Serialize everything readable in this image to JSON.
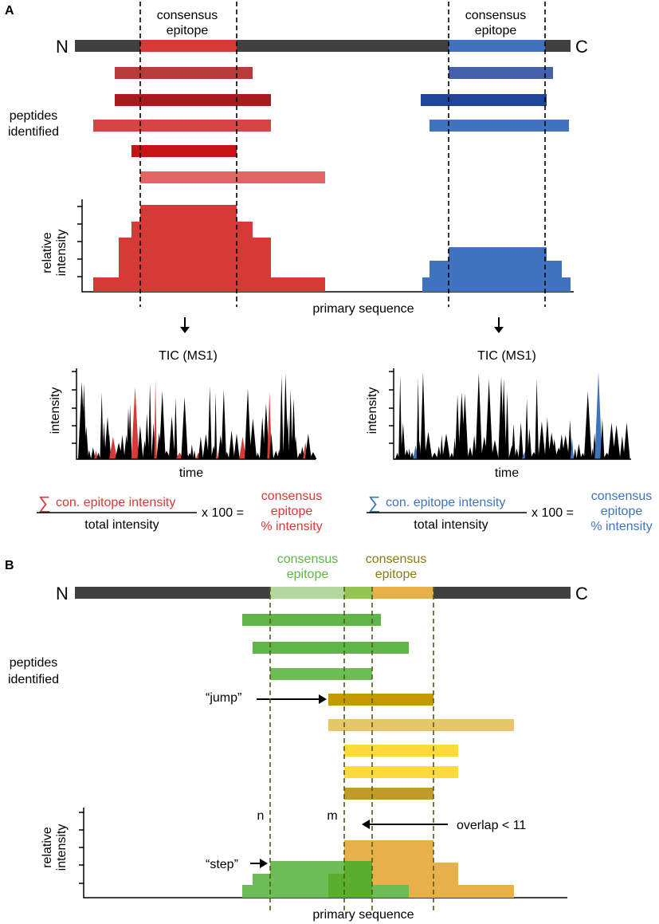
{
  "panel_a": {
    "label": "A",
    "n_term": "N",
    "c_term": "C",
    "consensus_left": [
      "consensus",
      "epitope"
    ],
    "consensus_right": [
      "consensus",
      "epitope"
    ],
    "peptides_label": [
      "peptides",
      "identified"
    ],
    "relative_intensity_label": [
      "relative",
      "intensity"
    ],
    "primary_sequence_label": "primary sequence",
    "tic_left_title": "TIC (MS1)",
    "tic_right_title": "TIC (MS1)",
    "intensity_label": "intensity",
    "time_label": "time",
    "formula_left": {
      "sigma": "∑",
      "numerator": "con. epitope intensity",
      "denominator": "total intensity",
      "multiplier": "x 100 =",
      "result": [
        "consensus",
        "epitope",
        "% intensity"
      ]
    },
    "formula_right": {
      "sigma": "∑",
      "numerator": "con. epitope intensity",
      "denominator": "total intensity",
      "multiplier": "x 100 =",
      "result": [
        "consensus",
        "epitope",
        "% intensity"
      ]
    }
  },
  "panel_b": {
    "label": "B",
    "n_term": "N",
    "c_term": "C",
    "consensus_green": [
      "consensus",
      "epitope"
    ],
    "consensus_olive": [
      "consensus",
      "epitope"
    ],
    "peptides_label": [
      "peptides",
      "identified"
    ],
    "jump_label": "“jump”",
    "step_label": "“step”",
    "overlap_label": "overlap < 11",
    "n_marker": "n",
    "m_marker": "m",
    "relative_intensity_label": [
      "relative",
      "intensity"
    ],
    "primary_sequence_label": "primary sequence"
  },
  "colors": {
    "chain": "#404040",
    "red": "#d63a36",
    "red_dark": "#a61c1c",
    "red_light": "#e06565",
    "blue": "#3f73bd",
    "blue_dark": "#1f4596",
    "green": "#66b84e",
    "green_light": "#a8d68f",
    "olive": "#7a6a10",
    "gold": "#e8b04a",
    "yellow": "#ffd93a"
  }
}
